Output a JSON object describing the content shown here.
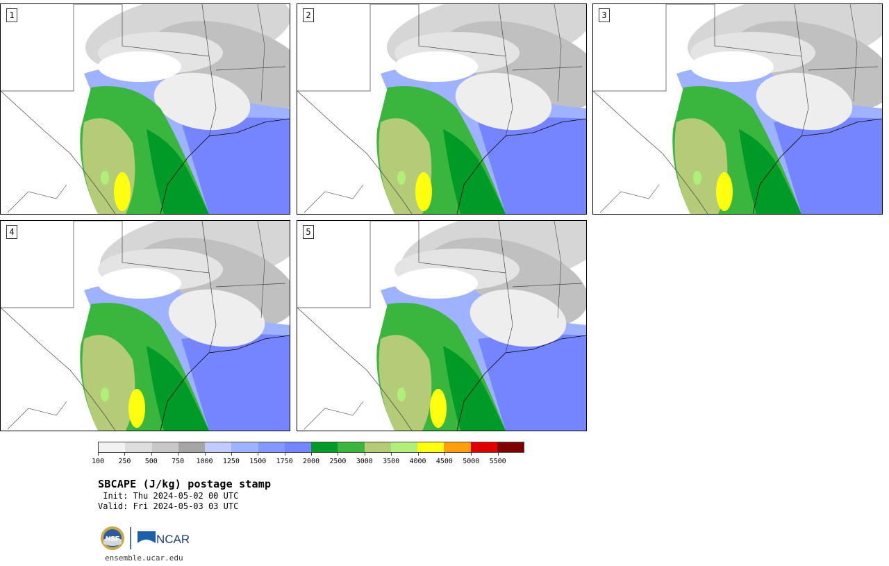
{
  "panels": [
    {
      "number": "1"
    },
    {
      "number": "2"
    },
    {
      "number": "3"
    },
    {
      "number": "4"
    },
    {
      "number": "5"
    }
  ],
  "colorbar": {
    "colors": [
      "#f2f2f2",
      "#dedede",
      "#c8c8c8",
      "#a6a6a6",
      "#c2cbff",
      "#9eb2ff",
      "#8598ff",
      "#7585ff",
      "#009a26",
      "#3ab63e",
      "#b4cc78",
      "#b0f078",
      "#ffff10",
      "#ff9f0e",
      "#e10000",
      "#800000"
    ],
    "labels": [
      "100",
      "250",
      "500",
      "750",
      "1000",
      "1250",
      "1500",
      "1750",
      "2000",
      "2500",
      "3000",
      "3500",
      "4000",
      "4500",
      "5000",
      "5500"
    ]
  },
  "title": "SBCAPE (J/kg) postage stamp",
  "init": " Init: Thu 2024-05-02 00 UTC",
  "valid": "Valid: Fri 2024-05-03 03 UTC",
  "logos": {
    "nsf_text": "NSF",
    "ncar_text": "NCAR"
  },
  "url": "ensemble.ucar.edu"
}
